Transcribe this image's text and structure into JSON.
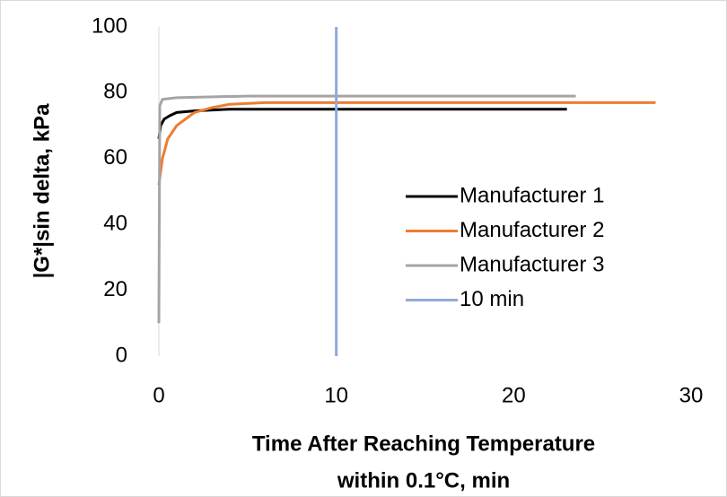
{
  "chart_data": {
    "type": "line",
    "y_label": "|G*|sin delta, kPa",
    "x_label": [
      "Time After Reaching Temperature",
      "within 0.1°C, min"
    ],
    "xlim": [
      0,
      30
    ],
    "xticks": [
      0,
      10,
      20,
      30
    ],
    "ylim": [
      0,
      100
    ],
    "yticks": [
      0,
      20,
      40,
      60,
      80,
      100
    ],
    "grid": false,
    "legend": "right",
    "series": [
      {
        "name": "Manufacturer 1",
        "color": "#000000",
        "x": [
          0,
          0.1,
          0.3,
          0.6,
          1,
          2,
          4,
          8,
          15,
          23
        ],
        "values": [
          66,
          70,
          72,
          73,
          74,
          74.5,
          75,
          75,
          75,
          75
        ]
      },
      {
        "name": "Manufacturer 2",
        "color": "#ed7d31",
        "x": [
          0,
          0.2,
          0.5,
          1,
          1.5,
          2,
          3,
          4,
          6,
          10,
          20,
          28
        ],
        "values": [
          52,
          60,
          66,
          70,
          72,
          74,
          75.5,
          76.5,
          77,
          77,
          77,
          77
        ]
      },
      {
        "name": "Manufacturer 3",
        "color": "#a5a5a5",
        "x": [
          0,
          0.05,
          0.2,
          1,
          5,
          10,
          15,
          20,
          23.5
        ],
        "values": [
          10,
          76,
          78,
          78.5,
          79,
          79,
          79,
          79,
          79
        ]
      },
      {
        "name": "10 min",
        "color": "#8faadc",
        "x": [
          10,
          10
        ],
        "values": [
          0,
          100
        ]
      }
    ]
  }
}
